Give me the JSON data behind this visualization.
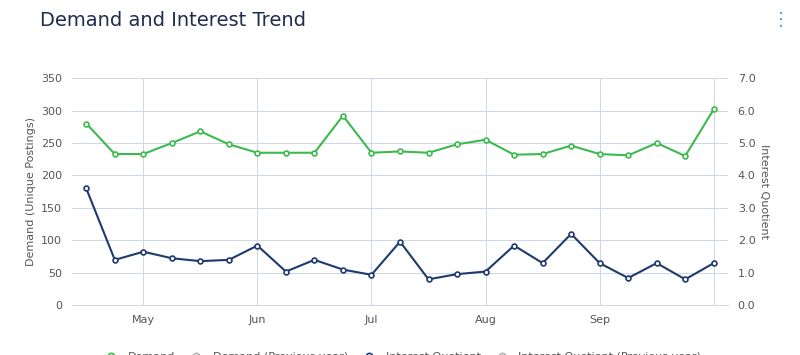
{
  "title": "Demand and Interest Trend",
  "ylabel_left": "Demand (Unique Postings)",
  "ylabel_right": "Interest Quotient",
  "ylim_left": [
    0,
    350
  ],
  "ylim_right": [
    0.0,
    7.0
  ],
  "yticks_left": [
    0,
    50,
    100,
    150,
    200,
    250,
    300,
    350
  ],
  "yticks_right": [
    0.0,
    1.0,
    2.0,
    3.0,
    4.0,
    5.0,
    6.0,
    7.0
  ],
  "month_positions": [
    2,
    6,
    10,
    14,
    18,
    22
  ],
  "month_labels": [
    "May",
    "Jun",
    "Jul",
    "Aug",
    "Sep",
    ""
  ],
  "demand": [
    280,
    233,
    233,
    250,
    268,
    248,
    235,
    235,
    235,
    292,
    235,
    237,
    235,
    248,
    255,
    232,
    233,
    246,
    233,
    231,
    250,
    230,
    302
  ],
  "interest_quotient": [
    3.6,
    1.4,
    1.65,
    1.45,
    1.36,
    1.4,
    1.84,
    1.04,
    1.4,
    1.1,
    0.94,
    1.96,
    0.8,
    0.96,
    1.04,
    1.84,
    1.3,
    2.2,
    1.3,
    0.84,
    1.3,
    0.8,
    1.3
  ],
  "demand_color": "#3dba4e",
  "interest_color": "#1e3a6e",
  "prev_color": "#b0b0b0",
  "background_color": "#ffffff",
  "grid_color": "#ccd6e8",
  "title_color": "#1e2d4e",
  "tick_color": "#555555",
  "title_fontsize": 14,
  "axis_label_fontsize": 8,
  "tick_fontsize": 8,
  "legend_fontsize": 8,
  "n_points": 23
}
